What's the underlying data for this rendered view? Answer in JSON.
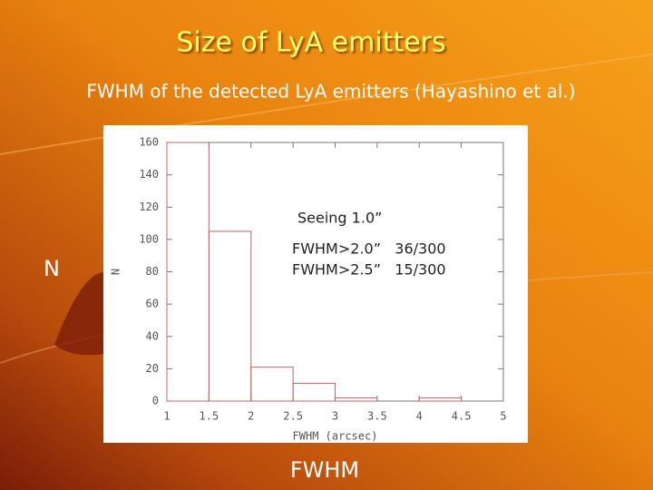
{
  "title": "Size of LyA emitters",
  "subtitle": "FWHM of the detected LyA emitters (Hayashino et al.)",
  "side_label": "N",
  "bottom_label": "FWHM",
  "chart_data": {
    "type": "histogram",
    "bins": [
      1,
      1.5,
      2,
      2.5,
      3,
      3.5,
      4,
      4.5,
      5
    ],
    "counts": [
      160,
      105,
      21,
      11,
      2,
      0,
      2,
      0
    ],
    "color": "#c86464",
    "xlim": [
      1,
      5
    ],
    "xticks": [
      1,
      1.5,
      2,
      2.5,
      3,
      3.5,
      4,
      4.5,
      5
    ],
    "ylim": [
      0,
      160
    ],
    "yticks": [
      0,
      20,
      40,
      60,
      80,
      100,
      120,
      140,
      160
    ],
    "xlabel": "FWHM (arcsec)",
    "ylabel": "N",
    "annotations": [
      "Seeing 1.0”",
      "FWHM>2.0”   36/300",
      "FWHM>2.5”   15/300"
    ]
  }
}
